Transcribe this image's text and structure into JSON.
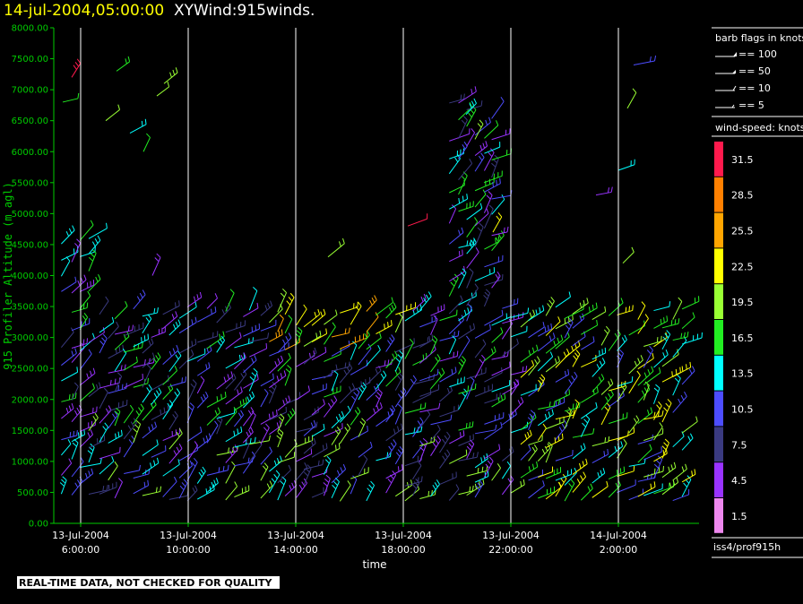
{
  "header": {
    "timestamp": "14-jul-2004,05:00:00",
    "title": "XYWind:915winds."
  },
  "footer": {
    "notice": "REAL-TIME DATA, NOT CHECKED FOR QUALITY"
  },
  "colors": {
    "background": "#000000",
    "axis": "#00cc00",
    "text": "#ffffff",
    "timestamp": "#ffff00",
    "gridline": "#ffffff"
  },
  "chart_data": {
    "type": "wind-barb time-height",
    "ylabel": "915 Profiler Altitude (m agl)",
    "xlabel": "time",
    "ylim": [
      0,
      8000
    ],
    "xlim": [
      "2004-07-13 05:00",
      "2004-07-14 05:00"
    ],
    "yticks": [
      "0.00",
      "500.00",
      "1000.00",
      "1500.00",
      "2000.00",
      "2500.00",
      "3000.00",
      "3500.00",
      "4000.00",
      "4500.00",
      "5000.00",
      "5500.00",
      "6000.00",
      "6500.00",
      "7000.00",
      "7500.00",
      "8000.00"
    ],
    "xticks": [
      {
        "date": "13-Jul-2004",
        "time": "6:00:00",
        "hour": 6
      },
      {
        "date": "13-Jul-2004",
        "time": "10:00:00",
        "hour": 10
      },
      {
        "date": "13-Jul-2004",
        "time": "14:00:00",
        "hour": 14
      },
      {
        "date": "13-Jul-2004",
        "time": "18:00:00",
        "hour": 18
      },
      {
        "date": "13-Jul-2004",
        "time": "22:00:00",
        "hour": 22
      },
      {
        "date": "14-Jul-2004",
        "time": "2:00:00",
        "hour": 26
      }
    ],
    "grid": "vertical",
    "barb_legend": {
      "title": "barb flags in knots",
      "entries": [
        "== 100",
        "== 50",
        "== 10",
        "== 5"
      ]
    },
    "speed_legend": {
      "title": "wind-speed: knots",
      "levels": [
        {
          "label": "31.5",
          "color": "#ff1a4d"
        },
        {
          "label": "28.5",
          "color": "#ff8000"
        },
        {
          "label": "25.5",
          "color": "#ffa500"
        },
        {
          "label": "22.5",
          "color": "#ffff00"
        },
        {
          "label": "19.5",
          "color": "#99ff33"
        },
        {
          "label": "16.5",
          "color": "#22ee22"
        },
        {
          "label": "13.5",
          "color": "#00ffff"
        },
        {
          "label": "10.5",
          "color": "#4d4dff"
        },
        {
          "label": "7.5",
          "color": "#3a3a80"
        },
        {
          "label": "4.5",
          "color": "#9933ff"
        },
        {
          "label": "1.5",
          "color": "#ee88ee"
        }
      ]
    },
    "source": "iss4/prof915h"
  }
}
